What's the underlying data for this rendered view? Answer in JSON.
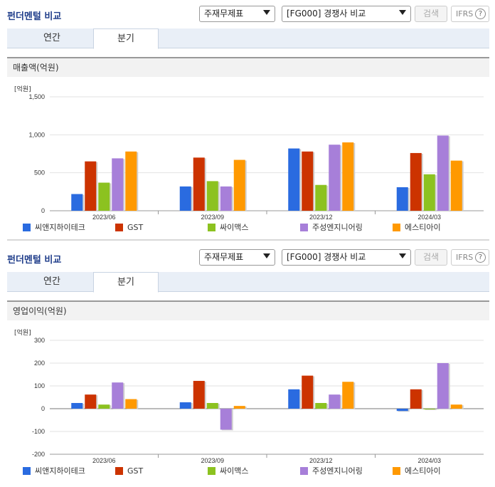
{
  "colors": [
    "#2a6be0",
    "#cc3300",
    "#8cc220",
    "#a77fd9",
    "#ff9900"
  ],
  "sections": [
    {
      "title": "펀더멘털 비교",
      "select1": "주재무제표",
      "select2": "[FG000] 경쟁사 비교",
      "search_label": "검색",
      "ifrs_label": "IFRS",
      "help_label": "?",
      "tabs": [
        "연간",
        "분기"
      ],
      "metric": "매출액(억원)",
      "chart_data": {
        "type": "bar",
        "unit_label": "[억원]",
        "categories": [
          "2023/06",
          "2023/09",
          "2023/12",
          "2024/03"
        ],
        "ylim": [
          0,
          1500
        ],
        "yticks": [
          0,
          500,
          1000,
          1500
        ],
        "ytick_labels": [
          "0",
          "500",
          "1,000",
          "1,500"
        ],
        "series": [
          {
            "name": "씨앤지하이테크",
            "values": [
              220,
              320,
              820,
              310
            ]
          },
          {
            "name": "GST",
            "values": [
              650,
              700,
              780,
              760
            ]
          },
          {
            "name": "싸이맥스",
            "values": [
              370,
              390,
              340,
              480
            ]
          },
          {
            "name": "주성엔지니어링",
            "values": [
              690,
              320,
              870,
              990
            ]
          },
          {
            "name": "에스티아이",
            "values": [
              780,
              670,
              900,
              660
            ]
          }
        ],
        "grid": true,
        "legend_position": "bottom"
      }
    },
    {
      "title": "펀더멘털 비교",
      "select1": "주재무제표",
      "select2": "[FG000] 경쟁사 비교",
      "search_label": "검색",
      "ifrs_label": "IFRS",
      "help_label": "?",
      "tabs": [
        "연간",
        "분기"
      ],
      "metric": "영업이익(억원)",
      "chart_data": {
        "type": "bar",
        "unit_label": "[억원]",
        "categories": [
          "2023/06",
          "2023/09",
          "2023/12",
          "2024/03"
        ],
        "ylim": [
          -200,
          300
        ],
        "yticks": [
          -200,
          -100,
          0,
          100,
          200,
          300
        ],
        "ytick_labels": [
          "-200",
          "-100",
          "0",
          "100",
          "200",
          "300"
        ],
        "series": [
          {
            "name": "씨앤지하이테크",
            "values": [
              25,
              28,
              85,
              -10
            ]
          },
          {
            "name": "GST",
            "values": [
              62,
              122,
              145,
              85
            ]
          },
          {
            "name": "싸이맥스",
            "values": [
              18,
              25,
              25,
              0
            ]
          },
          {
            "name": "주성엔지니어링",
            "values": [
              115,
              -92,
              62,
              200
            ]
          },
          {
            "name": "에스티아이",
            "values": [
              42,
              12,
              118,
              18
            ]
          }
        ],
        "grid": true,
        "legend_position": "bottom"
      }
    }
  ]
}
